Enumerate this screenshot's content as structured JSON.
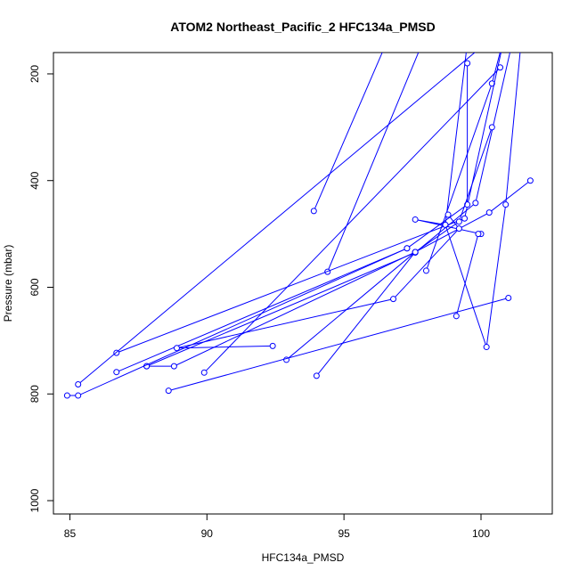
{
  "chart_data": {
    "type": "line",
    "title": "ATOM2 Northeast_Pacific_2 HFC134a_PMSD",
    "xlabel": "HFC134a_PMSD",
    "ylabel": "Pressure (mbar)",
    "xlim": [
      84.4,
      102.6
    ],
    "ylim": [
      1025,
      160
    ],
    "y_reversed": true,
    "x_ticks": [
      85,
      90,
      95,
      100
    ],
    "y_ticks": [
      200,
      400,
      600,
      800,
      1000
    ],
    "grid": false,
    "line_color": "#0000ff",
    "marker": "open-circle",
    "series": [
      {
        "values": [
          [
            96.9,
            100
          ],
          [
            93.9,
            457
          ]
        ]
      },
      {
        "values": [
          [
            98.2,
            100
          ],
          [
            94.4,
            571
          ]
        ]
      },
      {
        "values": [
          [
            99.6,
            100
          ],
          [
            98.7,
            483
          ],
          [
            97.6,
            473
          ],
          [
            100.0,
            500
          ]
        ]
      },
      {
        "values": [
          [
            101.0,
            100
          ],
          [
            100.4,
            218
          ],
          [
            98.0,
            569
          ]
        ]
      },
      {
        "values": [
          [
            100.9,
            120
          ],
          [
            99.4,
            471
          ],
          [
            86.7,
            723
          ]
        ]
      },
      {
        "values": [
          [
            101.5,
            120
          ],
          [
            100.9,
            445
          ],
          [
            100.2,
            712
          ],
          [
            98.7,
            483
          ]
        ]
      },
      {
        "values": [
          [
            100.7,
            188
          ],
          [
            89.9,
            760
          ]
        ]
      },
      {
        "values": [
          [
            100.7,
            120
          ],
          [
            85.3,
            782
          ]
        ]
      },
      {
        "values": [
          [
            99.5,
            180
          ],
          [
            99.5,
            445
          ],
          [
            97.3,
            527
          ],
          [
            86.7,
            759
          ]
        ]
      },
      {
        "values": [
          [
            101.1,
            150
          ],
          [
            99.8,
            442
          ],
          [
            97.6,
            535
          ],
          [
            87.8,
            748
          ]
        ]
      },
      {
        "values": [
          [
            100.4,
            300
          ],
          [
            99.2,
            477
          ],
          [
            97.6,
            534
          ],
          [
            88.8,
            748
          ],
          [
            87.8,
            748
          ]
        ]
      },
      {
        "values": [
          [
            101.8,
            400
          ],
          [
            100.3,
            460
          ],
          [
            97.6,
            534
          ],
          [
            92.9,
            736
          ]
        ]
      },
      {
        "values": [
          [
            98.8,
            464
          ],
          [
            99.2,
            490
          ],
          [
            96.8,
            622
          ],
          [
            88.9,
            714
          ],
          [
            92.4,
            710
          ]
        ]
      },
      {
        "values": [
          [
            97.3,
            527
          ],
          [
            85.3,
            803
          ],
          [
            84.9,
            803
          ]
        ]
      },
      {
        "values": [
          [
            97.6,
            534
          ],
          [
            94.0,
            766
          ]
        ]
      },
      {
        "values": [
          [
            99.9,
            500
          ],
          [
            99.1,
            654
          ]
        ]
      },
      {
        "values": [
          [
            101.0,
            620
          ],
          [
            88.6,
            794
          ]
        ]
      }
    ]
  }
}
